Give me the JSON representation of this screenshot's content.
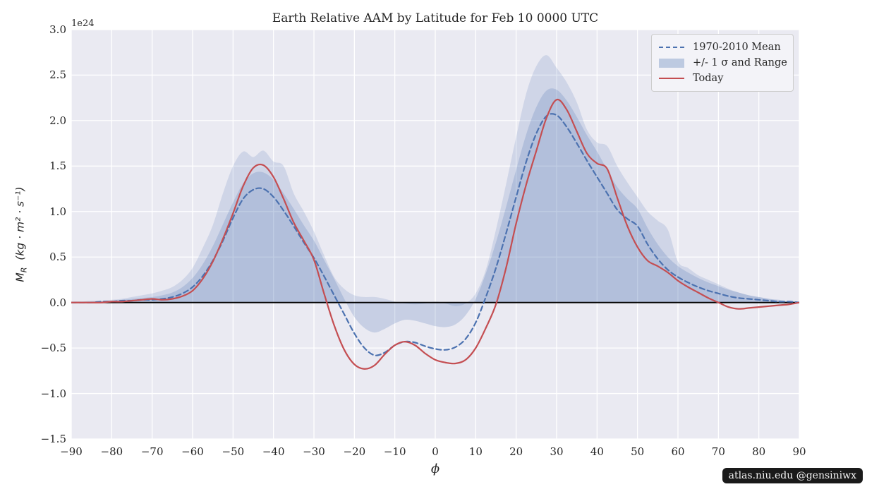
{
  "chart_data": {
    "type": "line",
    "title": "Earth Relative AAM by Latitude for Feb 10 0000 UTC",
    "xlabel": "ϕ",
    "ylabel": {
      "var": "M",
      "sub": "R",
      "units": "(kg · m² · s⁻¹)"
    },
    "offset_text": "1e24",
    "xlim": [
      -90,
      90
    ],
    "ylim": [
      -1.5,
      3.0
    ],
    "grid": true,
    "legend_position": "upper right",
    "legend_entries": [
      "1970-2010 Mean",
      "+/- 1 σ and Range",
      "Today"
    ],
    "x_ticks": [
      {
        "label": "−90",
        "value": -90
      },
      {
        "label": "−80",
        "value": -80
      },
      {
        "label": "−70",
        "value": -70
      },
      {
        "label": "−60",
        "value": -60
      },
      {
        "label": "−50",
        "value": -50
      },
      {
        "label": "−40",
        "value": -40
      },
      {
        "label": "−30",
        "value": -30
      },
      {
        "label": "−20",
        "value": -20
      },
      {
        "label": "−10",
        "value": -10
      },
      {
        "label": "0",
        "value": 0
      },
      {
        "label": "10",
        "value": 10
      },
      {
        "label": "20",
        "value": 20
      },
      {
        "label": "30",
        "value": 30
      },
      {
        "label": "40",
        "value": 40
      },
      {
        "label": "50",
        "value": 50
      },
      {
        "label": "60",
        "value": 60
      },
      {
        "label": "70",
        "value": 70
      },
      {
        "label": "80",
        "value": 80
      },
      {
        "label": "90",
        "value": 90
      }
    ],
    "y_ticks": [
      {
        "label": "3.0",
        "value": 3.0
      },
      {
        "label": "2.5",
        "value": 2.5
      },
      {
        "label": "2.0",
        "value": 2.0
      },
      {
        "label": "1.5",
        "value": 1.5
      },
      {
        "label": "1.0",
        "value": 1.0
      },
      {
        "label": "0.5",
        "value": 0.5
      },
      {
        "label": "0.0",
        "value": 0.0
      },
      {
        "label": "−0.5",
        "value": -0.5
      },
      {
        "label": "−1.0",
        "value": -1.0
      },
      {
        "label": "−1.5",
        "value": -1.5
      }
    ],
    "zero_line_y": 0,
    "phi": [
      -90,
      -87.5,
      -85,
      -82.5,
      -80,
      -77.5,
      -75,
      -72.5,
      -70,
      -67.5,
      -65,
      -62.5,
      -60,
      -57.5,
      -55,
      -52.5,
      -50,
      -47.5,
      -45,
      -42.5,
      -40,
      -37.5,
      -35,
      -32.5,
      -30,
      -27.5,
      -25,
      -22.5,
      -20,
      -17.5,
      -15,
      -12.5,
      -10,
      -7.5,
      -5,
      -2.5,
      0,
      2.5,
      5,
      7.5,
      10,
      12.5,
      15,
      17.5,
      20,
      22.5,
      25,
      27.5,
      30,
      32.5,
      35,
      37.5,
      40,
      42.5,
      45,
      47.5,
      50,
      52.5,
      55,
      57.5,
      60,
      62.5,
      65,
      67.5,
      70,
      72.5,
      75,
      77.5,
      80,
      82.5,
      85,
      87.5,
      90
    ],
    "series": [
      {
        "name": "1970-2010 Mean",
        "style": "dashed",
        "color": "#4c72b0",
        "values": [
          0,
          0,
          0,
          0.01,
          0.01,
          0.02,
          0.02,
          0.03,
          0.03,
          0.04,
          0.06,
          0.1,
          0.17,
          0.29,
          0.46,
          0.68,
          0.93,
          1.14,
          1.24,
          1.25,
          1.16,
          1.01,
          0.84,
          0.66,
          0.49,
          0.29,
          0.08,
          -0.13,
          -0.34,
          -0.5,
          -0.58,
          -0.55,
          -0.47,
          -0.43,
          -0.44,
          -0.48,
          -0.51,
          -0.52,
          -0.49,
          -0.4,
          -0.22,
          0.06,
          0.38,
          0.76,
          1.16,
          1.55,
          1.86,
          2.05,
          2.06,
          1.93,
          1.75,
          1.56,
          1.38,
          1.2,
          1.02,
          0.92,
          0.84,
          0.64,
          0.48,
          0.36,
          0.28,
          0.22,
          0.17,
          0.13,
          0.1,
          0.07,
          0.05,
          0.04,
          0.03,
          0.02,
          0.01,
          0.01,
          0
        ]
      },
      {
        "name": "Today",
        "style": "solid",
        "color": "#c44e52",
        "values": [
          0,
          0,
          0,
          0,
          0.01,
          0.01,
          0.02,
          0.03,
          0.04,
          0.03,
          0.04,
          0.07,
          0.13,
          0.26,
          0.45,
          0.7,
          0.98,
          1.28,
          1.48,
          1.51,
          1.38,
          1.14,
          0.88,
          0.68,
          0.47,
          0.1,
          -0.25,
          -0.52,
          -0.68,
          -0.73,
          -0.69,
          -0.57,
          -0.47,
          -0.43,
          -0.47,
          -0.56,
          -0.63,
          -0.66,
          -0.67,
          -0.63,
          -0.5,
          -0.28,
          -0.02,
          0.38,
          0.87,
          1.3,
          1.67,
          2.03,
          2.23,
          2.12,
          1.88,
          1.64,
          1.53,
          1.47,
          1.15,
          0.84,
          0.61,
          0.46,
          0.4,
          0.33,
          0.24,
          0.17,
          0.11,
          0.05,
          0,
          -0.05,
          -0.07,
          -0.06,
          -0.05,
          -0.04,
          -0.03,
          -0.02,
          0
        ]
      }
    ],
    "bands": [
      {
        "name": "range",
        "fill": "rgba(76,114,176,0.17)",
        "top": [
          0.01,
          0.01,
          0.02,
          0.02,
          0.03,
          0.04,
          0.06,
          0.08,
          0.1,
          0.13,
          0.17,
          0.25,
          0.38,
          0.6,
          0.85,
          1.2,
          1.5,
          1.66,
          1.6,
          1.67,
          1.55,
          1.5,
          1.2,
          1.0,
          0.78,
          0.52,
          0.28,
          0.15,
          0.08,
          0.06,
          0.06,
          0.04,
          0.01,
          -0.01,
          -0.02,
          -0.01,
          0.01,
          -0.01,
          -0.04,
          -0.01,
          0.1,
          0.36,
          0.8,
          1.3,
          1.82,
          2.3,
          2.6,
          2.72,
          2.58,
          2.42,
          2.2,
          1.9,
          1.76,
          1.72,
          1.5,
          1.32,
          1.16,
          1.0,
          0.9,
          0.8,
          0.45,
          0.38,
          0.3,
          0.25,
          0.2,
          0.15,
          0.11,
          0.08,
          0.06,
          0.04,
          0.02,
          0.01,
          0.01
        ],
        "bottom": [
          0,
          0,
          -0.01,
          -0.01,
          -0.01,
          -0.02,
          -0.02,
          -0.03,
          -0.03,
          -0.05,
          -0.06,
          -0.07,
          -0.07,
          -0.05,
          -0.02,
          0.1,
          0.26,
          0.42,
          0.52,
          0.56,
          0.5,
          0.38,
          0.24,
          0.08,
          -0.08,
          -0.27,
          -0.46,
          -0.66,
          -0.86,
          -1.0,
          -1.03,
          -0.97,
          -0.88,
          -0.85,
          -0.88,
          -0.9,
          -0.88,
          -0.92,
          -0.96,
          -0.9,
          -0.78,
          -0.56,
          -0.3,
          0.05,
          0.45,
          0.86,
          1.2,
          1.4,
          1.36,
          1.2,
          0.95,
          0.72,
          0.56,
          0.36,
          0.28,
          0.22,
          0.18,
          0.1,
          -0.02,
          -0.06,
          -0.09,
          -0.08,
          -0.06,
          -0.04,
          -0.03,
          -0.04,
          -0.04,
          -0.03,
          -0.02,
          -0.01,
          0,
          0,
          0
        ]
      },
      {
        "name": "sigma",
        "fill": "rgba(76,114,176,0.22)",
        "top": [
          0,
          0,
          0.01,
          0.01,
          0.02,
          0.03,
          0.04,
          0.05,
          0.06,
          0.08,
          0.11,
          0.17,
          0.27,
          0.42,
          0.62,
          0.86,
          1.1,
          1.31,
          1.42,
          1.43,
          1.35,
          1.2,
          1.03,
          0.85,
          0.68,
          0.47,
          0.26,
          0.04,
          -0.16,
          -0.28,
          -0.33,
          -0.29,
          -0.23,
          -0.19,
          -0.2,
          -0.23,
          -0.26,
          -0.27,
          -0.24,
          -0.14,
          0.04,
          0.32,
          0.66,
          1.05,
          1.46,
          1.85,
          2.15,
          2.33,
          2.34,
          2.22,
          2.04,
          1.84,
          1.66,
          1.46,
          1.27,
          1.14,
          1.03,
          0.82,
          0.64,
          0.5,
          0.4,
          0.33,
          0.27,
          0.22,
          0.18,
          0.14,
          0.11,
          0.08,
          0.06,
          0.04,
          0.03,
          0.01,
          0.01
        ],
        "bottom": [
          0,
          0,
          0,
          0,
          0,
          0,
          0.01,
          0.01,
          0.01,
          0.01,
          0.02,
          0.04,
          0.08,
          0.16,
          0.3,
          0.5,
          0.72,
          0.92,
          1.03,
          1.04,
          0.95,
          0.8,
          0.62,
          0.45,
          0.27,
          0.08,
          -0.13,
          -0.36,
          -0.57,
          -0.72,
          -0.81,
          -0.8,
          -0.74,
          -0.7,
          -0.71,
          -0.76,
          -0.79,
          -0.81,
          -0.77,
          -0.67,
          -0.49,
          -0.21,
          0.11,
          0.47,
          0.86,
          1.24,
          1.53,
          1.7,
          1.69,
          1.58,
          1.42,
          1.25,
          1.08,
          0.92,
          0.77,
          0.7,
          0.64,
          0.46,
          0.31,
          0.21,
          0.15,
          0.1,
          0.07,
          0.04,
          0.02,
          0.01,
          0,
          0,
          -0.01,
          -0.01,
          0,
          0,
          0
        ]
      }
    ],
    "colors": {
      "background": "#eaeaf2",
      "grid": "#ffffff",
      "zero_line": "#000000",
      "mean": "#4c72b0",
      "today": "#c44e52"
    }
  },
  "footer": {
    "watermark": "atlas.niu.edu  @gensiniwx"
  }
}
